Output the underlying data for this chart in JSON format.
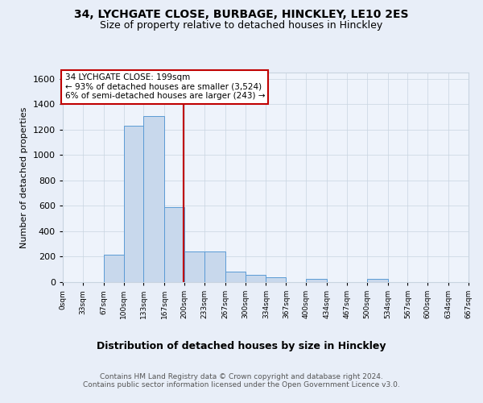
{
  "title1": "34, LYCHGATE CLOSE, BURBAGE, HINCKLEY, LE10 2ES",
  "title2": "Size of property relative to detached houses in Hinckley",
  "xlabel": "Distribution of detached houses by size in Hinckley",
  "ylabel": "Number of detached properties",
  "footer": "Contains HM Land Registry data © Crown copyright and database right 2024.\nContains public sector information licensed under the Open Government Licence v3.0.",
  "bin_labels": [
    "0sqm",
    "33sqm",
    "67sqm",
    "100sqm",
    "133sqm",
    "167sqm",
    "200sqm",
    "233sqm",
    "267sqm",
    "300sqm",
    "334sqm",
    "367sqm",
    "400sqm",
    "434sqm",
    "467sqm",
    "500sqm",
    "534sqm",
    "567sqm",
    "600sqm",
    "634sqm",
    "667sqm"
  ],
  "bar_values": [
    0,
    0,
    215,
    1230,
    1310,
    590,
    240,
    240,
    80,
    55,
    40,
    0,
    25,
    0,
    0,
    25,
    0,
    0,
    0,
    0
  ],
  "bin_edges": [
    0,
    33,
    67,
    100,
    133,
    167,
    200,
    233,
    267,
    300,
    334,
    367,
    400,
    434,
    467,
    500,
    534,
    567,
    600,
    634,
    667
  ],
  "bar_color": "#c8d8ec",
  "bar_edge_color": "#5b9bd5",
  "vline_x": 199,
  "vline_color": "#c00000",
  "annotation_text": "34 LYCHGATE CLOSE: 199sqm\n← 93% of detached houses are smaller (3,524)\n6% of semi-detached houses are larger (243) →",
  "annotation_box_color": "white",
  "annotation_box_edge": "#c00000",
  "ylim": [
    0,
    1650
  ],
  "yticks": [
    0,
    200,
    400,
    600,
    800,
    1000,
    1200,
    1400,
    1600
  ],
  "bg_color": "#e8eef8",
  "plot_bg_color": "#eef3fb",
  "grid_color": "#c8d4e0"
}
